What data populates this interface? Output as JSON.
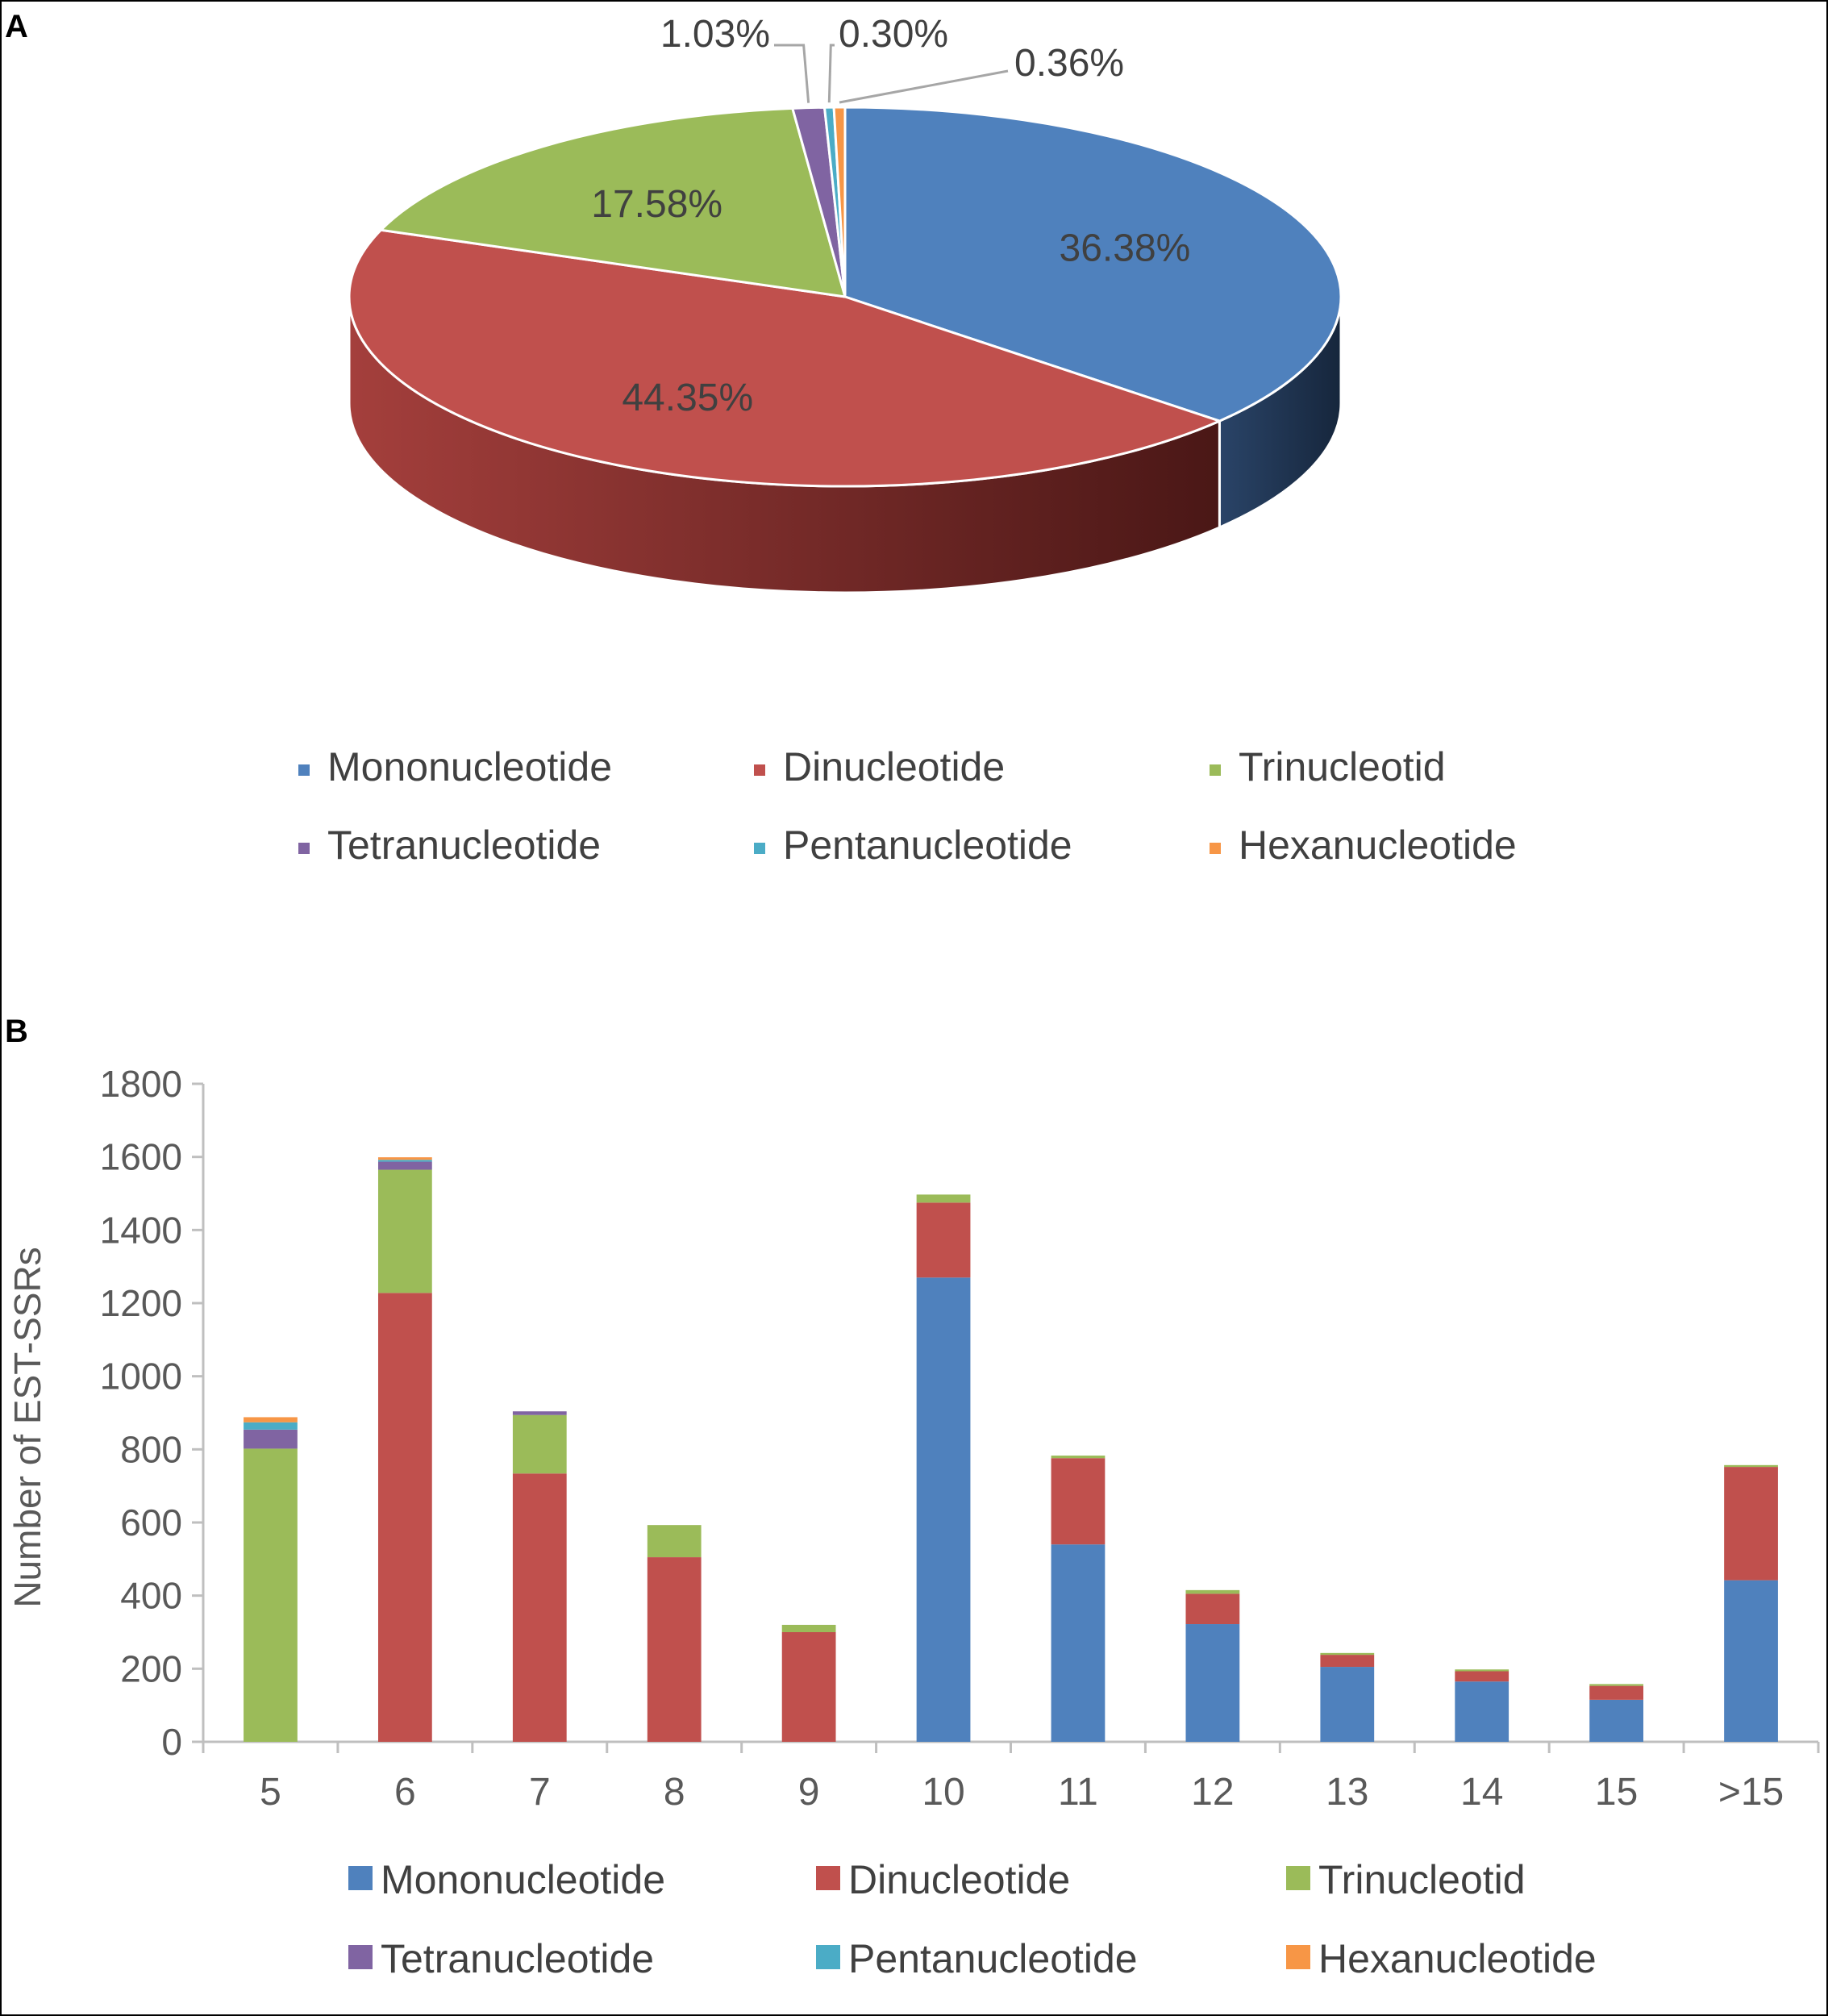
{
  "panels": {
    "a_label": "A",
    "b_label": "B"
  },
  "chart_data": [
    {
      "type": "pie",
      "style": "3d",
      "labels": [
        "Mononucleotide",
        "Dinucleotide",
        "Trinucleotid",
        "Tetranucleotide",
        "Pentanucleotide",
        "Hexanucleotide"
      ],
      "values": [
        36.38,
        44.35,
        17.58,
        1.03,
        0.3,
        0.36
      ],
      "value_labels": [
        "36.38%",
        "44.35%",
        "17.58%",
        "1.03%",
        "0.30%",
        "0.36%"
      ],
      "colors": [
        "#4f81bd",
        "#c0504d",
        "#9bbb59",
        "#8064a2",
        "#4bacc6",
        "#f79646"
      ],
      "legend_position": "bottom"
    },
    {
      "type": "bar",
      "stacked": true,
      "categories": [
        "5",
        "6",
        "7",
        "8",
        "9",
        "10",
        "11",
        "12",
        "13",
        "14",
        "15",
        ">15"
      ],
      "series": [
        {
          "name": "Mononucleotide",
          "color": "#4f81bd",
          "values": [
            0,
            0,
            0,
            0,
            0,
            1270,
            540,
            322,
            205,
            165,
            115,
            442
          ]
        },
        {
          "name": "Dinucleotide",
          "color": "#c0504d",
          "values": [
            0,
            1228,
            734,
            505,
            300,
            205,
            236,
            83,
            33,
            28,
            38,
            310
          ]
        },
        {
          "name": "Trinucleotid",
          "color": "#9bbb59",
          "values": [
            802,
            337,
            160,
            88,
            20,
            22,
            7,
            10,
            5,
            5,
            5,
            5
          ]
        },
        {
          "name": "Tetranucleotide",
          "color": "#8064a2",
          "values": [
            52,
            22,
            10,
            0,
            0,
            0,
            0,
            0,
            0,
            0,
            0,
            0
          ]
        },
        {
          "name": "Pentanucleotide",
          "color": "#4bacc6",
          "values": [
            20,
            5,
            0,
            0,
            0,
            0,
            0,
            0,
            0,
            0,
            0,
            0
          ]
        },
        {
          "name": "Hexanucleotide",
          "color": "#f79646",
          "values": [
            14,
            7,
            0,
            0,
            0,
            0,
            0,
            0,
            0,
            0,
            0,
            0
          ]
        }
      ],
      "ylabel": "Number of EST-SSRs",
      "xlabel": "",
      "ylim": [
        0,
        1800
      ],
      "yticks": [
        0,
        200,
        400,
        600,
        800,
        1000,
        1200,
        1400,
        1600,
        1800
      ],
      "grid": false,
      "legend_position": "bottom"
    }
  ]
}
